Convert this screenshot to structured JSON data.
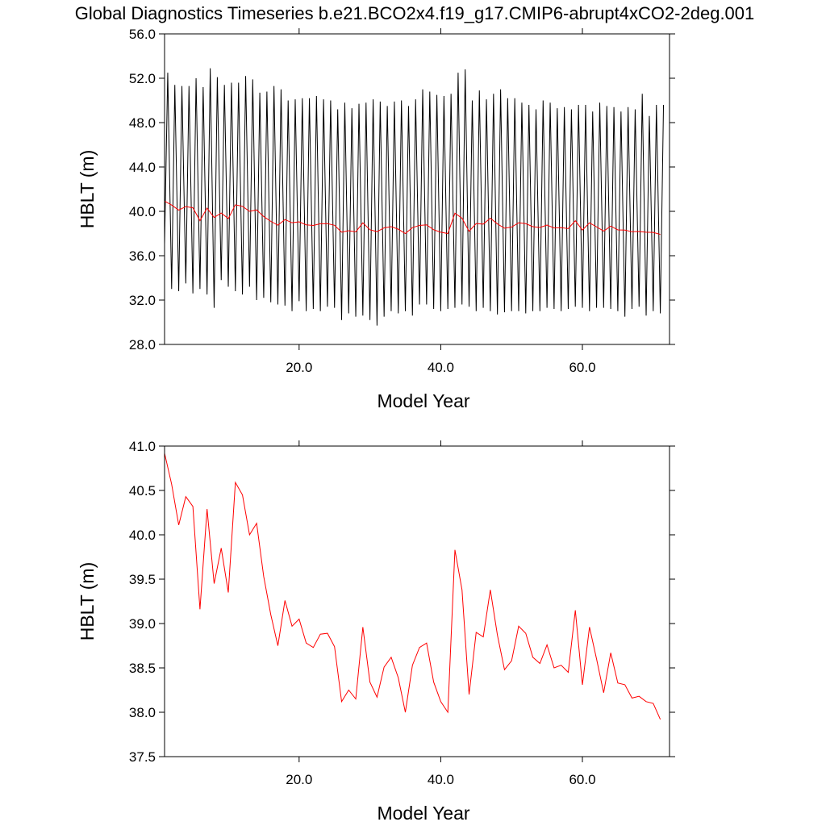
{
  "title": "Global Diagnostics Timeseries b.e21.BCO2x4.f19_g17.CMIP6-abrupt4xCO2-2deg.001",
  "chart_data": [
    {
      "type": "line",
      "xlabel": "Model Year",
      "ylabel": "HBLT (m)",
      "xlim": [
        1,
        72.3
      ],
      "ylim": [
        28,
        56
      ],
      "xticks": [
        {
          "value": 20,
          "label": "20.0"
        },
        {
          "value": 40,
          "label": "40.0"
        },
        {
          "value": 60,
          "label": "60.0"
        }
      ],
      "yticks": [
        {
          "value": 28,
          "label": "28.0"
        },
        {
          "value": 32,
          "label": "32.0"
        },
        {
          "value": 36,
          "label": "36.0"
        },
        {
          "value": 40,
          "label": "40.0"
        },
        {
          "value": 44,
          "label": "44.0"
        },
        {
          "value": 48,
          "label": "48.0"
        },
        {
          "value": 52,
          "label": "52.0"
        },
        {
          "value": 56,
          "label": "56.0"
        }
      ],
      "series": [
        {
          "color": "#000000",
          "x": [
            1,
            1.45,
            2,
            2.45,
            3,
            3.45,
            4,
            4.45,
            5,
            5.45,
            6,
            6.45,
            7,
            7.45,
            8,
            8.45,
            9,
            9.45,
            10,
            10.45,
            11,
            11.45,
            12,
            12.45,
            13,
            13.45,
            14,
            14.45,
            15,
            15.45,
            16,
            16.45,
            17,
            17.45,
            18,
            18.45,
            19,
            19.45,
            20,
            20.45,
            21,
            21.45,
            22,
            22.45,
            23,
            23.45,
            24,
            24.45,
            25,
            25.45,
            26,
            26.45,
            27,
            27.45,
            28,
            28.45,
            29,
            29.45,
            30,
            30.45,
            31,
            31.45,
            32,
            32.45,
            33,
            33.45,
            34,
            34.45,
            35,
            35.45,
            36,
            36.45,
            37,
            37.45,
            38,
            38.45,
            39,
            39.45,
            40,
            40.45,
            41,
            41.45,
            42,
            42.45,
            43,
            43.45,
            44,
            44.45,
            45,
            45.45,
            46,
            46.45,
            47,
            47.45,
            48,
            48.45,
            49,
            49.45,
            50,
            50.45,
            51,
            51.45,
            52,
            52.45,
            53,
            53.45,
            54,
            54.45,
            55,
            55.45,
            56,
            56.45,
            57,
            57.45,
            58,
            58.45,
            59,
            59.45,
            60,
            60.45,
            61,
            61.45,
            62,
            62.45,
            63,
            63.45,
            64,
            64.45,
            65,
            65.45,
            66,
            66.45,
            67,
            67.45,
            68,
            68.45,
            69,
            69.45,
            70,
            70.45,
            71,
            71.45
          ],
          "values": [
            37.0,
            52.5,
            33.0,
            51.4,
            32.8,
            51.3,
            33.5,
            51.3,
            32.6,
            52.0,
            33.0,
            51.2,
            32.5,
            52.9,
            31.3,
            52.1,
            33.8,
            51.4,
            33.2,
            51.6,
            32.8,
            51.6,
            32.5,
            52.2,
            33.2,
            51.9,
            32.0,
            50.7,
            32.2,
            50.8,
            31.8,
            51.3,
            31.6,
            51.0,
            31.5,
            50.0,
            31.0,
            50.1,
            31.9,
            50.2,
            31.0,
            50.2,
            31.2,
            50.4,
            31.0,
            50.1,
            31.4,
            50.0,
            31.3,
            49.2,
            30.2,
            49.8,
            30.8,
            49.3,
            30.5,
            49.7,
            30.6,
            49.8,
            30.2,
            50.1,
            29.7,
            49.9,
            30.5,
            49.5,
            31.0,
            49.9,
            30.8,
            50.0,
            31.0,
            49.5,
            30.6,
            50.1,
            31.6,
            51.0,
            31.6,
            50.8,
            31.2,
            50.5,
            31.0,
            50.4,
            31.2,
            50.6,
            31.3,
            52.5,
            31.6,
            52.8,
            31.4,
            50.0,
            31.0,
            50.9,
            31.3,
            50.1,
            31.0,
            50.6,
            30.7,
            51.0,
            30.9,
            50.2,
            31.0,
            50.2,
            31.0,
            49.8,
            30.8,
            49.6,
            31.0,
            49.2,
            31.0,
            50.0,
            31.3,
            49.8,
            31.2,
            49.3,
            31.0,
            49.4,
            31.2,
            49.2,
            31.4,
            49.6,
            31.3,
            49.6,
            31.0,
            49.0,
            31.3,
            49.8,
            31.3,
            49.5,
            31.2,
            49.4,
            31.0,
            49.0,
            30.5,
            49.4,
            31.2,
            49.2,
            31.4,
            50.6,
            30.6,
            48.6,
            31.0,
            49.6,
            30.8,
            49.6
          ]
        },
        {
          "color": "#ff0000",
          "x": [
            1,
            2,
            3,
            4,
            5,
            6,
            7,
            8,
            9,
            10,
            11,
            12,
            13,
            14,
            15,
            16,
            17,
            18,
            19,
            20,
            21,
            22,
            23,
            24,
            25,
            26,
            27,
            28,
            29,
            30,
            31,
            32,
            33,
            34,
            35,
            36,
            37,
            38,
            39,
            40,
            41,
            42,
            43,
            44,
            45,
            46,
            47,
            48,
            49,
            50,
            51,
            52,
            53,
            54,
            55,
            56,
            57,
            58,
            59,
            60,
            61,
            62,
            63,
            64,
            65,
            66,
            67,
            68,
            69,
            70,
            71
          ],
          "values": [
            40.92,
            40.57,
            40.11,
            40.43,
            40.32,
            39.16,
            40.29,
            39.45,
            39.85,
            39.35,
            40.59,
            40.45,
            40.0,
            40.13,
            39.53,
            39.1,
            38.75,
            39.26,
            38.97,
            39.05,
            38.78,
            38.73,
            38.88,
            38.89,
            38.74,
            38.12,
            38.25,
            38.15,
            38.96,
            38.34,
            38.17,
            38.51,
            38.62,
            38.39,
            38.0,
            38.53,
            38.73,
            38.78,
            38.34,
            38.12,
            38.0,
            39.83,
            39.38,
            38.2,
            38.9,
            38.85,
            39.38,
            38.87,
            38.48,
            38.58,
            38.97,
            38.89,
            38.62,
            38.55,
            38.76,
            38.5,
            38.53,
            38.45,
            39.15,
            38.31,
            38.96,
            38.6,
            38.22,
            38.67,
            38.33,
            38.31,
            38.16,
            38.18,
            38.12,
            38.1,
            37.92
          ]
        }
      ]
    },
    {
      "type": "line",
      "xlabel": "Model Year",
      "ylabel": "HBLT (m)",
      "xlim": [
        1,
        72.3
      ],
      "ylim": [
        37.5,
        41
      ],
      "xticks": [
        {
          "value": 20,
          "label": "20.0"
        },
        {
          "value": 40,
          "label": "40.0"
        },
        {
          "value": 60,
          "label": "60.0"
        }
      ],
      "yticks": [
        {
          "value": 37.5,
          "label": "37.5"
        },
        {
          "value": 38,
          "label": "38.0"
        },
        {
          "value": 38.5,
          "label": "38.5"
        },
        {
          "value": 39,
          "label": "39.0"
        },
        {
          "value": 39.5,
          "label": "39.5"
        },
        {
          "value": 40,
          "label": "40.0"
        },
        {
          "value": 40.5,
          "label": "40.5"
        },
        {
          "value": 41,
          "label": "41.0"
        }
      ],
      "series": [
        {
          "color": "#ff0000",
          "x": [
            1,
            2,
            3,
            4,
            5,
            6,
            7,
            8,
            9,
            10,
            11,
            12,
            13,
            14,
            15,
            16,
            17,
            18,
            19,
            20,
            21,
            22,
            23,
            24,
            25,
            26,
            27,
            28,
            29,
            30,
            31,
            32,
            33,
            34,
            35,
            36,
            37,
            38,
            39,
            40,
            41,
            42,
            43,
            44,
            45,
            46,
            47,
            48,
            49,
            50,
            51,
            52,
            53,
            54,
            55,
            56,
            57,
            58,
            59,
            60,
            61,
            62,
            63,
            64,
            65,
            66,
            67,
            68,
            69,
            70,
            71
          ],
          "values": [
            40.92,
            40.57,
            40.11,
            40.43,
            40.32,
            39.16,
            40.29,
            39.45,
            39.85,
            39.35,
            40.59,
            40.45,
            40.0,
            40.13,
            39.53,
            39.1,
            38.75,
            39.26,
            38.97,
            39.05,
            38.78,
            38.73,
            38.88,
            38.89,
            38.74,
            38.12,
            38.25,
            38.15,
            38.96,
            38.34,
            38.17,
            38.51,
            38.62,
            38.39,
            38.0,
            38.53,
            38.73,
            38.78,
            38.34,
            38.12,
            38.0,
            39.83,
            39.38,
            38.2,
            38.9,
            38.85,
            39.38,
            38.87,
            38.48,
            38.58,
            38.97,
            38.89,
            38.62,
            38.55,
            38.76,
            38.5,
            38.53,
            38.45,
            39.15,
            38.31,
            38.96,
            38.6,
            38.22,
            38.67,
            38.33,
            38.31,
            38.16,
            38.18,
            38.12,
            38.1,
            37.92
          ]
        }
      ]
    }
  ]
}
